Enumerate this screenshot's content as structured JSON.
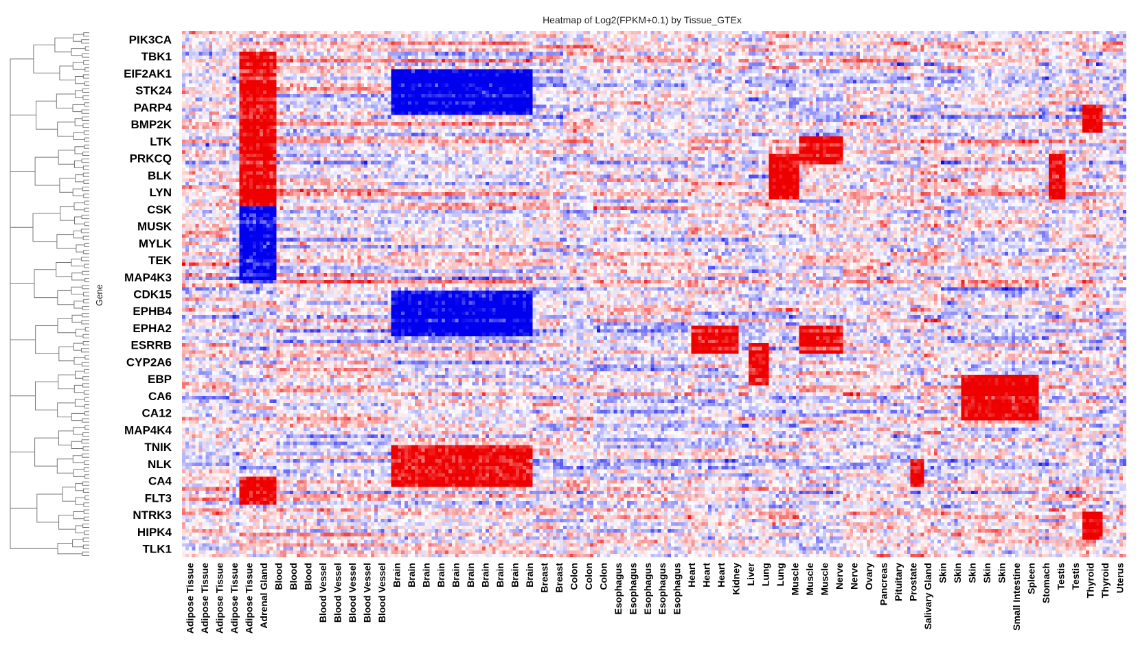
{
  "chart_data": {
    "type": "heatmap",
    "title": "Heatmap of Log2(FPKM+0.1) by Tissue_GTEx",
    "ylabel": "Gene",
    "xlabel": "",
    "colors": {
      "low": "#0000ee",
      "mid": "#ffffff",
      "high": "#ee0000"
    },
    "y_tick_labels": [
      "PIK3CA",
      "TBK1",
      "EIF2AK1",
      "STK24",
      "PARP4",
      "BMP2K",
      "LTK",
      "PRKCQ",
      "BLK",
      "LYN",
      "CSK",
      "MUSK",
      "MYLK",
      "TEK",
      "MAP4K3",
      "CDK15",
      "EPHB4",
      "EPHA2",
      "ESRRB",
      "CYP2A6",
      "EBP",
      "CA6",
      "CA12",
      "MAP4K4",
      "TNIK",
      "NLK",
      "CA4",
      "FLT3",
      "NTRK3",
      "HIPK4",
      "TLK1"
    ],
    "x_tick_labels": [
      "Adipose Tissue",
      "Adipose Tissue",
      "Adipose Tissue",
      "Adipose Tissue",
      "Adipose Tissue",
      "Adrenal Gland",
      "Blood",
      "Blood",
      "Blood",
      "Blood Vessel",
      "Blood Vessel",
      "Blood Vessel",
      "Blood Vessel",
      "Blood Vessel",
      "Brain",
      "Brain",
      "Brain",
      "Brain",
      "Brain",
      "Brain",
      "Brain",
      "Brain",
      "Brain",
      "Brain",
      "Breast",
      "Breast",
      "Colon",
      "Colon",
      "Colon",
      "Esophagus",
      "Esophagus",
      "Esophagus",
      "Esophagus",
      "Esophagus",
      "Heart",
      "Heart",
      "Heart",
      "Kidney",
      "Liver",
      "Lung",
      "Lung",
      "Muscle",
      "Muscle",
      "Muscle",
      "Nerve",
      "Nerve",
      "Ovary",
      "Pancreas",
      "Pituitary",
      "Prostate",
      "Salivary Gland",
      "Skin",
      "Skin",
      "Skin",
      "Skin",
      "Skin",
      "Small Intestine",
      "Spleen",
      "Stomach",
      "Testis",
      "Testis",
      "Thyroid",
      "Thyroid",
      "Uterus"
    ],
    "tissue_blocks": [
      {
        "name": "Adipose Tissue",
        "range": [
          0,
          0.051
        ]
      },
      {
        "name": "Adrenal Gland",
        "range": [
          0.051,
          0.062
        ]
      },
      {
        "name": "Blood",
        "range": [
          0.062,
          0.099
        ]
      },
      {
        "name": "Blood Vessel",
        "range": [
          0.099,
          0.22
        ]
      },
      {
        "name": "Brain",
        "range": [
          0.22,
          0.371
        ]
      },
      {
        "name": "Breast",
        "range": [
          0.371,
          0.402
        ]
      },
      {
        "name": "Colon",
        "range": [
          0.402,
          0.435
        ]
      },
      {
        "name": "Esophagus",
        "range": [
          0.435,
          0.541
        ]
      },
      {
        "name": "Heart",
        "range": [
          0.541,
          0.588
        ]
      },
      {
        "name": "Kidney",
        "range": [
          0.588,
          0.6
        ]
      },
      {
        "name": "Liver",
        "range": [
          0.6,
          0.621
        ]
      },
      {
        "name": "Lung",
        "range": [
          0.621,
          0.654
        ]
      },
      {
        "name": "Muscle",
        "range": [
          0.654,
          0.699
        ]
      },
      {
        "name": "Nerve",
        "range": [
          0.699,
          0.736
        ]
      },
      {
        "name": "Ovary",
        "range": [
          0.736,
          0.751
        ]
      },
      {
        "name": "Pancreas",
        "range": [
          0.751,
          0.771
        ]
      },
      {
        "name": "Pituitary",
        "range": [
          0.771,
          0.787
        ]
      },
      {
        "name": "Prostate",
        "range": [
          0.787,
          0.805
        ]
      },
      {
        "name": "Salivary Gland",
        "range": [
          0.805,
          0.824
        ]
      },
      {
        "name": "Skin",
        "range": [
          0.824,
          0.906
        ]
      },
      {
        "name": "Small Intestine",
        "range": [
          0.906,
          0.919
        ]
      },
      {
        "name": "Spleen",
        "range": [
          0.919,
          0.934
        ]
      },
      {
        "name": "Stomach",
        "range": [
          0.934,
          0.953
        ]
      },
      {
        "name": "Testis",
        "range": [
          0.953,
          0.974
        ]
      },
      {
        "name": "Thyroid",
        "range": [
          0.974,
          0.992
        ]
      },
      {
        "name": "Uterus",
        "range": [
          0.992,
          1.0
        ]
      }
    ],
    "notable_blocks": [
      {
        "tissue": "Blood",
        "genes": [
          "EIF2AK1",
          "CSK"
        ],
        "level": "high"
      },
      {
        "tissue": "Blood",
        "genes": [
          "MUSK",
          "MAP4K3"
        ],
        "level": "low"
      },
      {
        "tissue": "Blood",
        "genes": [
          "FLT3"
        ],
        "level": "high"
      },
      {
        "tissue": "Brain",
        "genes": [
          "STK24",
          "PARP4"
        ],
        "level": "low"
      },
      {
        "tissue": "Brain",
        "genes": [
          "EPHB4",
          "EPHA2"
        ],
        "level": "low"
      },
      {
        "tissue": "Brain",
        "genes": [
          "NLK",
          "CA4"
        ],
        "level": "high"
      },
      {
        "tissue": "Liver",
        "genes": [
          "CYP2A6",
          "EBP"
        ],
        "level": "high"
      },
      {
        "tissue": "Lung",
        "genes": [
          "BLK",
          "LYN"
        ],
        "level": "high"
      },
      {
        "tissue": "Muscle",
        "genes": [
          "ESRRB"
        ],
        "level": "high"
      },
      {
        "tissue": "Muscle",
        "genes": [
          "PRKCQ"
        ],
        "level": "high"
      },
      {
        "tissue": "Spleen",
        "genes": [
          "BLK",
          "LYN"
        ],
        "level": "high"
      },
      {
        "tissue": "Testis",
        "genes": [
          "BMP2K"
        ],
        "level": "high"
      },
      {
        "tissue": "Testis",
        "genes": [
          "HIPK4"
        ],
        "level": "high"
      },
      {
        "tissue": "Skin",
        "genes": [
          "CA6",
          "CA12"
        ],
        "level": "high"
      },
      {
        "tissue": "Heart",
        "genes": [
          "ESRRB"
        ],
        "level": "high"
      },
      {
        "tissue": "Pituitary",
        "genes": [
          "CA4"
        ],
        "level": "high"
      }
    ]
  }
}
